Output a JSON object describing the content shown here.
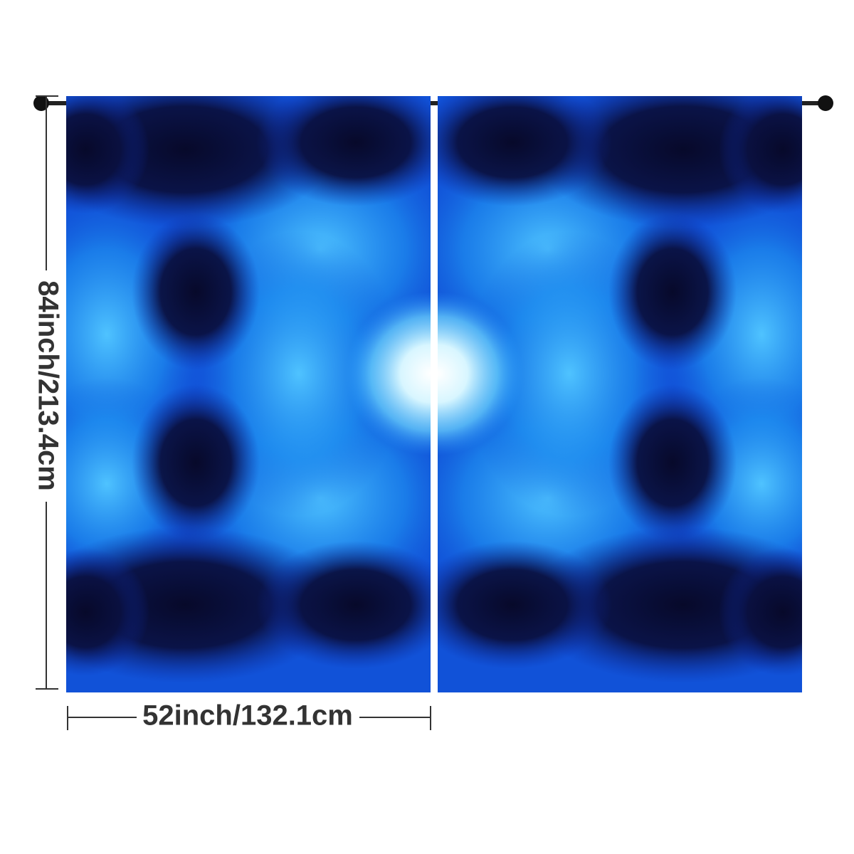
{
  "dimensions": {
    "height": "84inch/213.4cm",
    "width": "52inch/132.1cm"
  }
}
